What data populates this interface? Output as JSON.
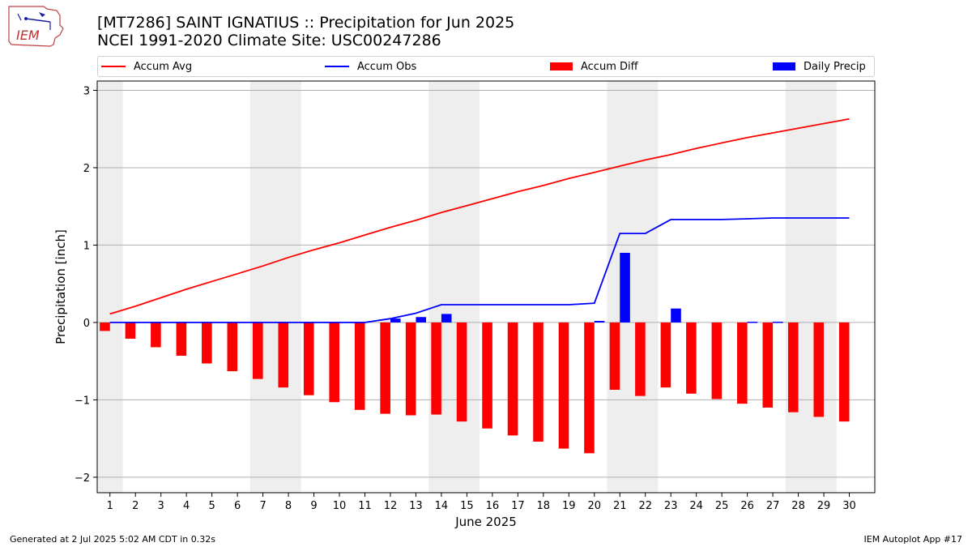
{
  "header": {
    "logo_text": "IEM",
    "title_line1": "[MT7286] SAINT IGNATIUS :: Precipitation for Jun 2025",
    "title_line2": "NCEI 1991-2020 Climate Site: USC00247286"
  },
  "footer": {
    "left": "Generated at 2 Jul 2025 5:02 AM CDT in 0.32s",
    "right": "IEM Autoplot App #17"
  },
  "colors": {
    "avg": "#ff0000",
    "obs": "#0000ff",
    "diff": "#ff0000",
    "daily": "#0000ff",
    "weekend_band": "#eeeeee"
  },
  "chart_data": {
    "type": "bar",
    "xlabel": "June 2025",
    "ylabel": "Precipitation [inch]",
    "ylim": [
      -2.2,
      3.12
    ],
    "yticks": [
      -2,
      -1,
      0,
      1,
      2,
      3
    ],
    "ytick_labels": [
      "−2",
      "−1",
      "0",
      "1",
      "2",
      "3"
    ],
    "grid": "y",
    "legend_position": "top",
    "days": [
      1,
      2,
      3,
      4,
      5,
      6,
      7,
      8,
      9,
      10,
      11,
      12,
      13,
      14,
      15,
      16,
      17,
      18,
      19,
      20,
      21,
      22,
      23,
      24,
      25,
      26,
      27,
      28,
      29,
      30
    ],
    "weekend_bands": [
      [
        1,
        1
      ],
      [
        7,
        8
      ],
      [
        14,
        15
      ],
      [
        21,
        22
      ],
      [
        28,
        29
      ]
    ],
    "series": [
      {
        "name": "Accum Avg",
        "type": "line",
        "values": [
          0.11,
          0.21,
          0.32,
          0.43,
          0.53,
          0.63,
          0.73,
          0.84,
          0.94,
          1.03,
          1.13,
          1.23,
          1.32,
          1.42,
          1.51,
          1.6,
          1.69,
          1.77,
          1.86,
          1.94,
          2.02,
          2.1,
          2.17,
          2.25,
          2.32,
          2.39,
          2.45,
          2.51,
          2.57,
          2.63
        ]
      },
      {
        "name": "Accum Obs",
        "type": "line",
        "values": [
          0,
          0,
          0,
          0,
          0,
          0,
          0,
          0,
          0,
          0,
          0,
          0.05,
          0.12,
          0.23,
          0.23,
          0.23,
          0.23,
          0.23,
          0.23,
          0.25,
          1.15,
          1.15,
          1.33,
          1.33,
          1.33,
          1.34,
          1.35,
          1.35,
          1.35,
          1.35
        ]
      },
      {
        "name": "Accum Diff",
        "type": "bar",
        "values": [
          -0.11,
          -0.21,
          -0.32,
          -0.43,
          -0.53,
          -0.63,
          -0.73,
          -0.84,
          -0.94,
          -1.03,
          -1.13,
          -1.18,
          -1.2,
          -1.19,
          -1.28,
          -1.37,
          -1.46,
          -1.54,
          -1.63,
          -1.69,
          -0.87,
          -0.95,
          -0.84,
          -0.92,
          -0.99,
          -1.05,
          -1.1,
          -1.16,
          -1.22,
          -1.28
        ]
      },
      {
        "name": "Daily Precip",
        "type": "bar",
        "values": [
          0,
          0,
          0,
          0,
          0,
          0,
          0,
          0,
          0,
          0,
          0,
          0.05,
          0.07,
          0.11,
          0,
          0,
          0,
          0,
          0,
          0.02,
          0.9,
          0,
          0.18,
          0,
          0,
          0.01,
          0.01,
          0,
          0,
          0
        ]
      }
    ]
  }
}
